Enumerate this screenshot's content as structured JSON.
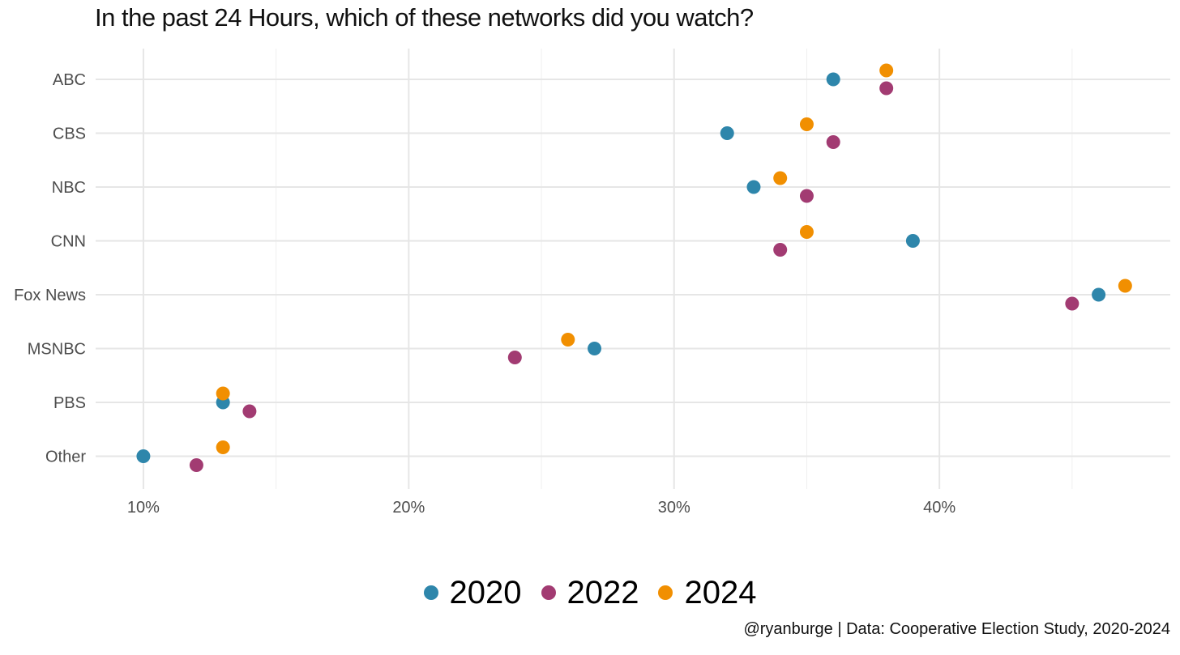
{
  "chart_data": {
    "type": "scatter",
    "title": "In the past 24 Hours, which of these networks did you watch?",
    "caption": "@ryanburge | Data: Cooperative Election Study, 2020-2024",
    "categories": [
      "ABC",
      "CBS",
      "NBC",
      "CNN",
      "Fox News",
      "MSNBC",
      "PBS",
      "Other"
    ],
    "xlim": [
      8.2,
      48.7
    ],
    "x_ticks": [
      10,
      20,
      30,
      40
    ],
    "x_tick_labels": [
      "10%",
      "20%",
      "30%",
      "40%"
    ],
    "grid": true,
    "legend_position": "bottom",
    "series": [
      {
        "name": "2020",
        "color": "#2e86ab",
        "values": [
          36,
          32,
          33,
          39,
          46,
          27,
          13,
          10
        ]
      },
      {
        "name": "2022",
        "color": "#a23b72",
        "values": [
          38,
          36,
          35,
          34,
          45,
          24,
          14,
          12
        ]
      },
      {
        "name": "2024",
        "color": "#f18f01",
        "values": [
          38,
          35,
          34,
          35,
          47,
          26,
          13,
          13
        ]
      }
    ]
  }
}
